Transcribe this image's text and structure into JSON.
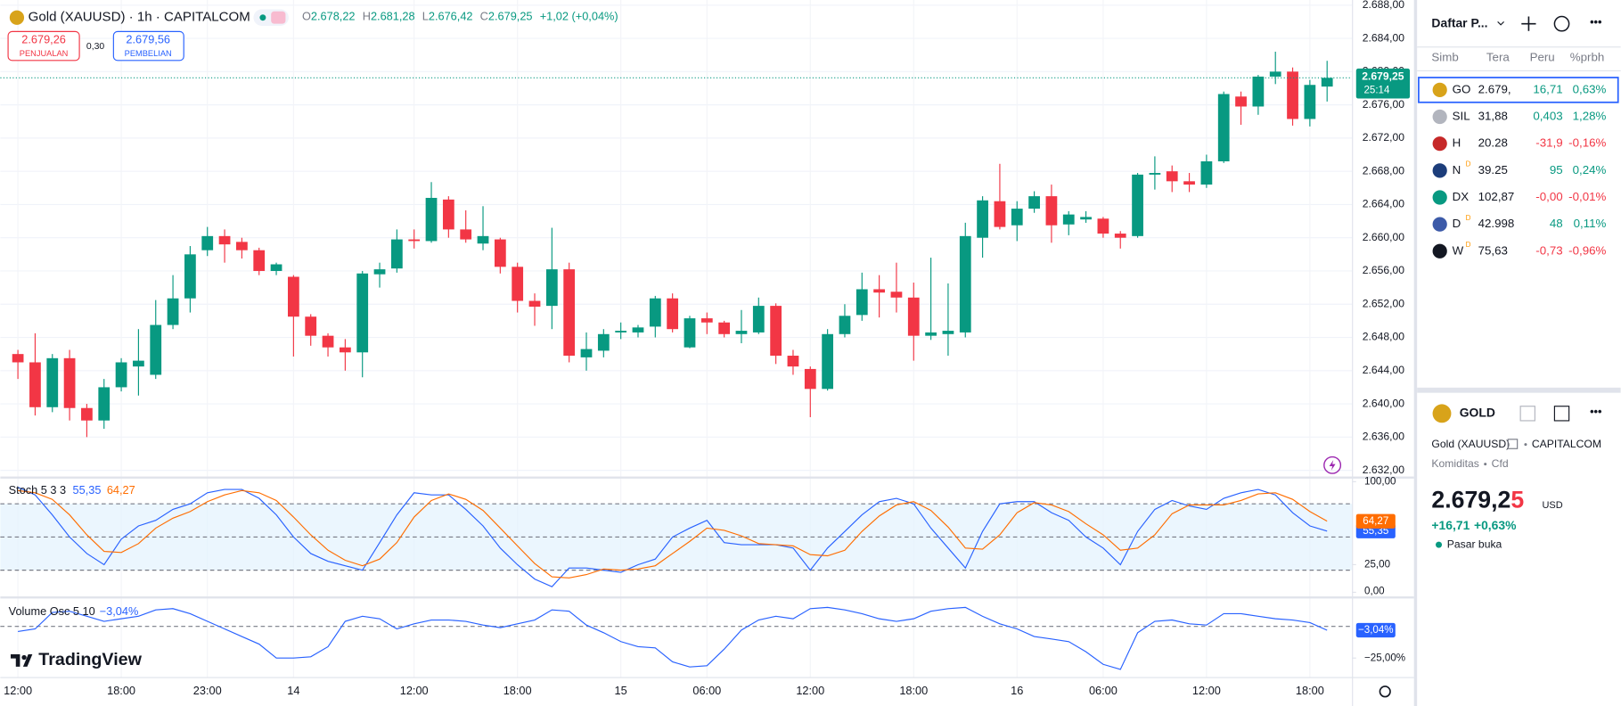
{
  "header": {
    "symbol": "Gold (XAUUSD) · 1h · CAPITALCOM",
    "o_key": "O",
    "o": "2.678,22",
    "h_key": "H",
    "h": "2.681,28",
    "l_key": "L",
    "l": "2.676,42",
    "c_key": "C",
    "c": "2.679,25",
    "change": "+1,02 (+0,04%)",
    "sell": "2.679,26",
    "sell_label": "PENJUALAN",
    "spread": "0,30",
    "buy": "2.679,56",
    "buy_label": "PEMBELIAN"
  },
  "chart_data": [
    {
      "type": "candlestick",
      "up_color": "#089981",
      "down_color": "#f23645",
      "grid": true,
      "ylim": [
        2632,
        2688
      ],
      "yticks": [
        {
          "value": 2632,
          "label": "2.632,00"
        },
        {
          "value": 2636,
          "label": "2.636,00"
        },
        {
          "value": 2640,
          "label": "2.640,00"
        },
        {
          "value": 2644,
          "label": "2.644,00"
        },
        {
          "value": 2648,
          "label": "2.648,00"
        },
        {
          "value": 2652,
          "label": "2.652,00"
        },
        {
          "value": 2656,
          "label": "2.656,00"
        },
        {
          "value": 2660,
          "label": "2.660,00"
        },
        {
          "value": 2664,
          "label": "2.664,00"
        },
        {
          "value": 2668,
          "label": "2.668,00"
        },
        {
          "value": 2672,
          "label": "2.672,00"
        },
        {
          "value": 2676,
          "label": "2.676,00"
        },
        {
          "value": 2680,
          "label": "2.680,00"
        },
        {
          "value": 2684,
          "label": "2.684,00"
        },
        {
          "value": 2688,
          "label": "2.688,00"
        }
      ],
      "categories": [
        "12:00",
        null,
        null,
        null,
        null,
        null,
        "18:00",
        null,
        null,
        null,
        null,
        "23:00",
        null,
        null,
        null,
        null,
        "14",
        null,
        null,
        null,
        null,
        null,
        null,
        "12:00",
        null,
        null,
        null,
        null,
        null,
        "18:00",
        null,
        null,
        null,
        null,
        null,
        "15",
        null,
        null,
        null,
        null,
        "06:00",
        null,
        null,
        null,
        null,
        null,
        "12:00",
        null,
        null,
        null,
        null,
        null,
        "18:00",
        null,
        null,
        null,
        null,
        null,
        "16",
        null,
        null,
        null,
        null,
        "06:00",
        null,
        null,
        null,
        null,
        null,
        "12:00",
        null,
        null,
        null,
        null,
        null,
        "18:00",
        null
      ],
      "candles": [
        {
          "o": 2646,
          "h": 2646.5,
          "l": 2643,
          "c": 2645
        },
        {
          "o": 2645,
          "h": 2648.5,
          "l": 2638.6,
          "c": 2639.6
        },
        {
          "o": 2639.6,
          "h": 2646,
          "l": 2639,
          "c": 2645.5
        },
        {
          "o": 2645.5,
          "h": 2646.5,
          "l": 2638,
          "c": 2639.5
        },
        {
          "o": 2639.5,
          "h": 2640,
          "l": 2636,
          "c": 2638
        },
        {
          "o": 2638,
          "h": 2643,
          "l": 2637,
          "c": 2642
        },
        {
          "o": 2642,
          "h": 2645.5,
          "l": 2641.5,
          "c": 2645
        },
        {
          "o": 2644.5,
          "h": 2649,
          "l": 2641,
          "c": 2645.2
        },
        {
          "o": 2643.5,
          "h": 2652.5,
          "l": 2643,
          "c": 2649.5
        },
        {
          "o": 2649.5,
          "h": 2655.5,
          "l": 2649,
          "c": 2652.7
        },
        {
          "o": 2652.7,
          "h": 2659,
          "l": 2651,
          "c": 2658
        },
        {
          "o": 2658.5,
          "h": 2661.3,
          "l": 2657.8,
          "c": 2660.2
        },
        {
          "o": 2660.2,
          "h": 2661,
          "l": 2657,
          "c": 2659.2
        },
        {
          "o": 2659.5,
          "h": 2660,
          "l": 2657.5,
          "c": 2658.5
        },
        {
          "o": 2658.5,
          "h": 2658.8,
          "l": 2655.5,
          "c": 2656
        },
        {
          "o": 2656,
          "h": 2657,
          "l": 2655.5,
          "c": 2656.8
        },
        {
          "o": 2655.3,
          "h": 2655.5,
          "l": 2645.7,
          "c": 2650.5
        },
        {
          "o": 2650.5,
          "h": 2650.8,
          "l": 2647,
          "c": 2648.2
        },
        {
          "o": 2648.2,
          "h": 2648.5,
          "l": 2645.7,
          "c": 2646.8
        },
        {
          "o": 2646.8,
          "h": 2647.8,
          "l": 2644,
          "c": 2646.2
        },
        {
          "o": 2646.2,
          "h": 2656,
          "l": 2643.2,
          "c": 2655.7
        },
        {
          "o": 2655.6,
          "h": 2657,
          "l": 2654,
          "c": 2656.2
        },
        {
          "o": 2656.3,
          "h": 2661,
          "l": 2655.8,
          "c": 2659.8
        },
        {
          "o": 2659.8,
          "h": 2661,
          "l": 2658.7,
          "c": 2659.6
        },
        {
          "o": 2659.6,
          "h": 2666.7,
          "l": 2659.4,
          "c": 2664.8
        },
        {
          "o": 2664.6,
          "h": 2665,
          "l": 2660,
          "c": 2661
        },
        {
          "o": 2661,
          "h": 2663.3,
          "l": 2659.4,
          "c": 2659.8
        },
        {
          "o": 2659.3,
          "h": 2663.8,
          "l": 2658.5,
          "c": 2660.2
        },
        {
          "o": 2659.8,
          "h": 2660,
          "l": 2655.7,
          "c": 2656.5
        },
        {
          "o": 2656.5,
          "h": 2657,
          "l": 2651,
          "c": 2652.4
        },
        {
          "o": 2652.4,
          "h": 2653.3,
          "l": 2649.4,
          "c": 2651.7
        },
        {
          "o": 2651.8,
          "h": 2661.2,
          "l": 2649,
          "c": 2656.2
        },
        {
          "o": 2656.2,
          "h": 2657,
          "l": 2645,
          "c": 2645.8
        },
        {
          "o": 2645.6,
          "h": 2648.6,
          "l": 2644,
          "c": 2646.6
        },
        {
          "o": 2646.4,
          "h": 2649,
          "l": 2645.6,
          "c": 2648.4
        },
        {
          "o": 2648.6,
          "h": 2649.8,
          "l": 2647.8,
          "c": 2648.8
        },
        {
          "o": 2648.6,
          "h": 2649.5,
          "l": 2648,
          "c": 2649.2
        },
        {
          "o": 2649.3,
          "h": 2653,
          "l": 2648,
          "c": 2652.7
        },
        {
          "o": 2652.7,
          "h": 2653.3,
          "l": 2648.6,
          "c": 2649
        },
        {
          "o": 2646.8,
          "h": 2650.6,
          "l": 2646.7,
          "c": 2650.3
        },
        {
          "o": 2650.3,
          "h": 2651,
          "l": 2648.4,
          "c": 2649.8
        },
        {
          "o": 2649.8,
          "h": 2650,
          "l": 2648,
          "c": 2648.4
        },
        {
          "o": 2648.4,
          "h": 2651.3,
          "l": 2647.3,
          "c": 2648.8
        },
        {
          "o": 2648.6,
          "h": 2652.8,
          "l": 2648.4,
          "c": 2651.8
        },
        {
          "o": 2651.8,
          "h": 2652.1,
          "l": 2644.8,
          "c": 2645.8
        },
        {
          "o": 2645.8,
          "h": 2646.5,
          "l": 2643.5,
          "c": 2644.5
        },
        {
          "o": 2644.2,
          "h": 2644.5,
          "l": 2638.4,
          "c": 2641.8
        },
        {
          "o": 2641.8,
          "h": 2649,
          "l": 2641.6,
          "c": 2648.4
        },
        {
          "o": 2648.4,
          "h": 2652,
          "l": 2648,
          "c": 2650.6
        },
        {
          "o": 2650.7,
          "h": 2655.8,
          "l": 2650,
          "c": 2653.8
        },
        {
          "o": 2653.8,
          "h": 2655.5,
          "l": 2650.4,
          "c": 2653.4
        },
        {
          "o": 2653.5,
          "h": 2657,
          "l": 2651,
          "c": 2652.8
        },
        {
          "o": 2652.8,
          "h": 2654.6,
          "l": 2645.2,
          "c": 2648.2
        },
        {
          "o": 2648.2,
          "h": 2657.6,
          "l": 2647.7,
          "c": 2648.6
        },
        {
          "o": 2648.4,
          "h": 2654.5,
          "l": 2645.8,
          "c": 2648.8
        },
        {
          "o": 2648.6,
          "h": 2661.8,
          "l": 2648,
          "c": 2660.2
        },
        {
          "o": 2660,
          "h": 2665,
          "l": 2657.6,
          "c": 2664.5
        },
        {
          "o": 2664.4,
          "h": 2668.9,
          "l": 2661,
          "c": 2661.3
        },
        {
          "o": 2661.5,
          "h": 2664.4,
          "l": 2659.6,
          "c": 2663.5
        },
        {
          "o": 2663.5,
          "h": 2665.6,
          "l": 2663,
          "c": 2665
        },
        {
          "o": 2665,
          "h": 2666.4,
          "l": 2659.4,
          "c": 2661.5
        },
        {
          "o": 2661.6,
          "h": 2663.2,
          "l": 2660.3,
          "c": 2662.8
        },
        {
          "o": 2662.2,
          "h": 2663.2,
          "l": 2661.8,
          "c": 2662.5
        },
        {
          "o": 2662.3,
          "h": 2662.5,
          "l": 2660,
          "c": 2660.5
        },
        {
          "o": 2660.5,
          "h": 2660.8,
          "l": 2658.7,
          "c": 2660
        },
        {
          "o": 2660.2,
          "h": 2667.8,
          "l": 2660,
          "c": 2667.6
        },
        {
          "o": 2667.6,
          "h": 2669.8,
          "l": 2665.8,
          "c": 2667.8
        },
        {
          "o": 2668,
          "h": 2668.7,
          "l": 2665.5,
          "c": 2666.8
        },
        {
          "o": 2666.8,
          "h": 2667.8,
          "l": 2665.5,
          "c": 2666.4
        },
        {
          "o": 2666.4,
          "h": 2670,
          "l": 2666,
          "c": 2669.2
        },
        {
          "o": 2669.2,
          "h": 2677.6,
          "l": 2669,
          "c": 2677.3
        },
        {
          "o": 2677,
          "h": 2677.6,
          "l": 2673.6,
          "c": 2675.8
        },
        {
          "o": 2675.8,
          "h": 2679.6,
          "l": 2674.8,
          "c": 2679.4
        },
        {
          "o": 2679.4,
          "h": 2682.4,
          "l": 2678.5,
          "c": 2680
        },
        {
          "o": 2680,
          "h": 2680.5,
          "l": 2673.5,
          "c": 2674.3
        },
        {
          "o": 2674.3,
          "h": 2679,
          "l": 2673.4,
          "c": 2678.4
        },
        {
          "o": 2678.2,
          "h": 2681.3,
          "l": 2676.4,
          "c": 2679.25
        }
      ],
      "last_price": 2679.25,
      "last_label": "2.679,25",
      "countdown": "25:14"
    },
    {
      "type": "line",
      "title": "Stoch 5 3 3",
      "ylim": [
        0,
        100
      ],
      "yticks": [
        {
          "value": 0,
          "label": "0,00"
        },
        {
          "value": 25,
          "label": "25,00"
        },
        {
          "value": 100,
          "label": "100,00"
        }
      ],
      "band": [
        20,
        80
      ],
      "midline": 50,
      "band_color": "#e3f2fd",
      "series": [
        {
          "color": "#2962ff",
          "last_label": "55,35",
          "values": [
            95,
            88,
            70,
            50,
            35,
            25,
            48,
            60,
            65,
            75,
            80,
            90,
            93,
            93,
            85,
            70,
            50,
            35,
            28,
            24,
            20,
            45,
            70,
            90,
            88,
            88,
            75,
            60,
            40,
            25,
            12,
            5,
            22,
            22,
            20,
            18,
            25,
            30,
            50,
            58,
            65,
            45,
            43,
            43,
            43,
            40,
            20,
            40,
            55,
            70,
            82,
            85,
            80,
            58,
            40,
            22,
            55,
            80,
            82,
            82,
            72,
            65,
            50,
            40,
            25,
            55,
            75,
            83,
            78,
            75,
            85,
            90,
            93,
            88,
            72,
            60,
            55.35
          ]
        },
        {
          "color": "#ff6d00",
          "last_label": "64,27",
          "values": [
            92,
            90,
            84,
            70,
            52,
            37,
            36,
            44,
            58,
            67,
            73,
            82,
            88,
            92,
            90,
            83,
            68,
            52,
            38,
            29,
            24,
            30,
            45,
            68,
            83,
            89,
            84,
            74,
            58,
            42,
            26,
            14,
            13,
            16,
            21,
            20,
            21,
            24,
            35,
            46,
            58,
            56,
            51,
            44,
            43,
            42,
            34,
            33,
            38,
            55,
            69,
            79,
            82,
            74,
            59,
            40,
            39,
            52,
            72,
            81,
            79,
            73,
            62,
            52,
            38,
            40,
            52,
            71,
            79,
            79,
            79,
            83,
            89,
            90,
            84,
            73,
            64.27
          ]
        }
      ]
    },
    {
      "type": "line",
      "title": "Volume Osc 5 10",
      "ylim": [
        -40,
        22
      ],
      "yticks": [
        {
          "value": -25,
          "label": "−25,00%"
        }
      ],
      "zero_line": 0,
      "series": [
        {
          "color": "#2962ff",
          "last_label": "−3,04%",
          "values": [
            -4,
            -2,
            11,
            12,
            8,
            4,
            6,
            8,
            13,
            14,
            10,
            4,
            -2,
            -8,
            -14,
            -25,
            -25,
            -24,
            -16,
            4,
            8,
            6,
            -2,
            2,
            5,
            5,
            4,
            1,
            -1,
            2,
            5,
            13,
            12,
            1,
            -5,
            -12,
            -16,
            -17,
            -28,
            -32,
            -31,
            -18,
            -3,
            5,
            8,
            6,
            14,
            15,
            13,
            10,
            6,
            4,
            6,
            12,
            14,
            15,
            8,
            2,
            -2,
            -8,
            -10,
            -12,
            -20,
            -30,
            -34,
            -5,
            4,
            5,
            2,
            1,
            10,
            10,
            8,
            6,
            5,
            3,
            -3.04
          ]
        }
      ]
    }
  ],
  "logo": "TradingView",
  "watchlist": {
    "title": "Daftar P...",
    "columns": [
      "Simb",
      "Tera",
      "Peru",
      "%prbh"
    ],
    "rows": [
      {
        "icon": "#d8a31a",
        "symbol": "GO",
        "price": "2.679,",
        "change": "16,71",
        "percent": "0,63%"
      },
      {
        "icon": "#b2b5be",
        "symbol": "SIL",
        "price": "31,88",
        "change": "0,403",
        "percent": "1,28%"
      },
      {
        "icon": "#c62828",
        "symbol": "H",
        "price": "20.28",
        "change": "-31,9",
        "percent": "-0,16%"
      },
      {
        "icon": "#1c3d7a",
        "symbol": "N",
        "flag": "D",
        "price": "39.25",
        "change": "95",
        "percent": "0,24%"
      },
      {
        "icon": "#089981",
        "symbol": "DX",
        "price": "102,87",
        "change": "-0,00",
        "percent": "-0,01%"
      },
      {
        "icon": "#3c5aa8",
        "symbol": "D",
        "flag": "D",
        "price": "42.998",
        "change": "48",
        "percent": "0,11%"
      },
      {
        "icon": "#131722",
        "symbol": "W",
        "flag": "D",
        "price": "75,63",
        "change": "-0,73",
        "percent": "-0,96%"
      }
    ]
  },
  "details": {
    "ticker": "GOLD",
    "name": "Gold (XAUUSD)",
    "exchange": "CAPITALCOM",
    "category": "Komiditas",
    "kind": "Cfd",
    "price_main": "2.679,2",
    "price_last_digit": "5",
    "currency": "USD",
    "change": "+16,71",
    "percent": "+0,63%",
    "status": "Pasar buka"
  }
}
